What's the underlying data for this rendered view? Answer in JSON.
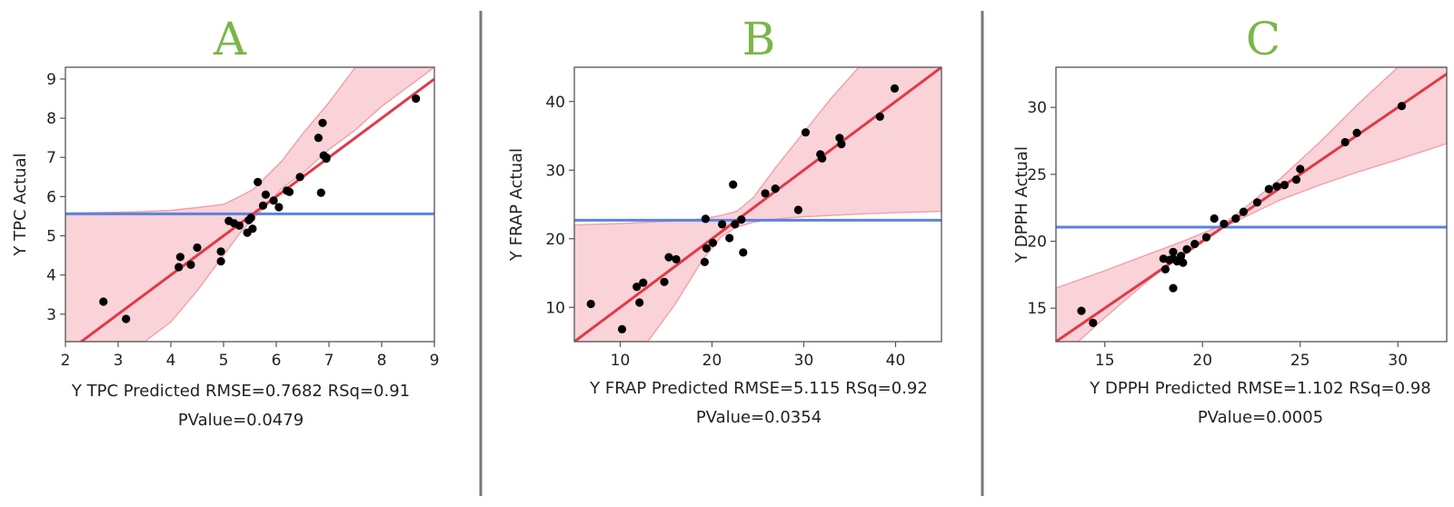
{
  "colors": {
    "letter": "#7ab648",
    "fit_line": "#e03a48",
    "band_fill": "#f9d3d8",
    "band_edge": "#f0a0aa",
    "mean_line": "#5b82e0",
    "points": "#000000",
    "separator": "#777777"
  },
  "chart_data": [
    {
      "type": "scatter",
      "panel_label": "A",
      "xlabel": "Y TPC Predicted RMSE=0.7682 RSq=0.91",
      "pvalue": "PValue=0.0479",
      "ylabel": "Y TPC Actual",
      "xlim": [
        2,
        9
      ],
      "ylim": [
        2.3,
        9.3
      ],
      "xticks": [
        2,
        3,
        4,
        5,
        6,
        7,
        8,
        9
      ],
      "yticks": [
        3,
        4,
        5,
        6,
        7,
        8,
        9
      ],
      "mean_y": 5.56,
      "fit": {
        "slope": 1,
        "intercept": 0
      },
      "points": [
        [
          2.72,
          3.32
        ],
        [
          3.15,
          2.88
        ],
        [
          4.15,
          4.2
        ],
        [
          4.18,
          4.46
        ],
        [
          4.38,
          4.26
        ],
        [
          4.5,
          4.7
        ],
        [
          4.95,
          4.35
        ],
        [
          4.95,
          4.6
        ],
        [
          5.1,
          5.38
        ],
        [
          5.2,
          5.32
        ],
        [
          5.3,
          5.26
        ],
        [
          5.45,
          5.08
        ],
        [
          5.48,
          5.4
        ],
        [
          5.52,
          5.46
        ],
        [
          5.55,
          5.18
        ],
        [
          5.65,
          6.37
        ],
        [
          5.75,
          5.77
        ],
        [
          5.8,
          6.05
        ],
        [
          5.95,
          5.9
        ],
        [
          6.05,
          5.73
        ],
        [
          6.2,
          6.15
        ],
        [
          6.25,
          6.12
        ],
        [
          6.45,
          6.5
        ],
        [
          6.8,
          7.5
        ],
        [
          6.85,
          6.1
        ],
        [
          6.88,
          7.88
        ],
        [
          6.9,
          7.05
        ],
        [
          6.95,
          6.97
        ],
        [
          6.95,
          7.0
        ],
        [
          8.65,
          8.5
        ]
      ],
      "band": {
        "x": [
          2,
          3,
          3.5,
          4,
          4.5,
          5,
          5.3,
          5.56,
          5.8,
          6.1,
          6.5,
          7,
          7.5,
          8,
          9
        ],
        "lower": [
          2.3,
          2.3,
          2.3,
          2.8,
          3.6,
          4.5,
          5.05,
          5.45,
          5.75,
          6.2,
          6.6,
          7.2,
          7.7,
          8.3,
          9.3
        ],
        "upper": [
          5.58,
          5.6,
          5.62,
          5.65,
          5.72,
          5.8,
          6.0,
          6.18,
          6.5,
          6.9,
          7.6,
          8.4,
          9.3,
          9.3,
          9.3
        ]
      }
    },
    {
      "type": "scatter",
      "panel_label": "B",
      "xlabel": "Y FRAP Predicted RMSE=5.115 RSq=0.92",
      "pvalue": "PValue=0.0354",
      "ylabel": "Y FRAP Actual",
      "xlim": [
        5,
        45
      ],
      "ylim": [
        5,
        45
      ],
      "xticks": [
        10,
        20,
        30,
        40
      ],
      "yticks": [
        10,
        20,
        30,
        40
      ],
      "mean_y": 22.7,
      "fit": {
        "slope": 1,
        "intercept": 0
      },
      "points": [
        [
          6.8,
          10.5
        ],
        [
          10.2,
          6.8
        ],
        [
          11.8,
          13.0
        ],
        [
          12.1,
          10.7
        ],
        [
          12.5,
          13.6
        ],
        [
          14.8,
          13.7
        ],
        [
          15.3,
          17.3
        ],
        [
          16.1,
          17.0
        ],
        [
          19.2,
          16.6
        ],
        [
          19.3,
          22.9
        ],
        [
          19.4,
          18.6
        ],
        [
          20.1,
          19.4
        ],
        [
          21.1,
          22.1
        ],
        [
          21.9,
          20.1
        ],
        [
          22.3,
          27.9
        ],
        [
          22.5,
          22.1
        ],
        [
          23.2,
          22.8
        ],
        [
          23.4,
          18.0
        ],
        [
          25.8,
          26.6
        ],
        [
          26.9,
          27.3
        ],
        [
          29.4,
          24.2
        ],
        [
          30.2,
          35.5
        ],
        [
          31.8,
          32.3
        ],
        [
          32.0,
          31.7
        ],
        [
          33.9,
          34.7
        ],
        [
          34.1,
          33.8
        ],
        [
          38.3,
          37.8
        ],
        [
          39.9,
          41.9
        ]
      ],
      "band": {
        "x": [
          5,
          10,
          13,
          16,
          19,
          21,
          22.7,
          24.5,
          27,
          30,
          33,
          36,
          40,
          45
        ],
        "lower": [
          5,
          5,
          5,
          10.5,
          17.0,
          20.3,
          21.7,
          22.4,
          22.9,
          23.2,
          23.4,
          23.6,
          23.8,
          24.0
        ],
        "upper": [
          22.0,
          22.2,
          22.4,
          22.6,
          22.9,
          23.4,
          24.0,
          26.0,
          30.5,
          35.5,
          40.5,
          45,
          45,
          45
        ]
      }
    },
    {
      "type": "scatter",
      "panel_label": "C",
      "xlabel": "Y DPPH Predicted RMSE=1.102 RSq=0.98",
      "pvalue": "PValue=0.0005",
      "ylabel": "Y DPPH Actual",
      "xlim": [
        12.5,
        32.5
      ],
      "ylim": [
        12.5,
        33
      ],
      "xticks": [
        15,
        20,
        25,
        30
      ],
      "yticks": [
        15,
        20,
        25,
        30
      ],
      "mean_y": 21.05,
      "fit": {
        "slope": 1,
        "intercept": 0
      },
      "points": [
        [
          13.8,
          14.8
        ],
        [
          14.4,
          13.9
        ],
        [
          18.0,
          18.7
        ],
        [
          18.1,
          17.9
        ],
        [
          18.3,
          18.6
        ],
        [
          18.5,
          18.7
        ],
        [
          18.5,
          19.2
        ],
        [
          18.5,
          16.5
        ],
        [
          18.7,
          18.5
        ],
        [
          18.9,
          18.9
        ],
        [
          19.0,
          18.4
        ],
        [
          19.2,
          19.4
        ],
        [
          19.6,
          19.8
        ],
        [
          20.2,
          20.3
        ],
        [
          20.6,
          21.7
        ],
        [
          21.1,
          21.3
        ],
        [
          21.7,
          21.7
        ],
        [
          22.1,
          22.2
        ],
        [
          22.8,
          22.9
        ],
        [
          23.4,
          23.9
        ],
        [
          23.8,
          24.1
        ],
        [
          24.2,
          24.2
        ],
        [
          24.8,
          24.6
        ],
        [
          25.0,
          25.4
        ],
        [
          27.3,
          27.4
        ],
        [
          27.9,
          28.1
        ],
        [
          30.2,
          30.1
        ]
      ],
      "band": {
        "x": [
          12.5,
          15,
          17,
          19,
          20.5,
          21.05,
          22,
          24,
          26,
          28,
          30,
          32.5
        ],
        "lower": [
          11.0,
          14.3,
          16.8,
          19.2,
          20.6,
          21.0,
          21.7,
          23.1,
          24.2,
          25.2,
          26.1,
          27.3
        ],
        "upper": [
          16.5,
          17.8,
          18.9,
          20.0,
          20.9,
          21.3,
          22.3,
          24.7,
          27.4,
          30.3,
          33,
          33
        ]
      }
    }
  ]
}
